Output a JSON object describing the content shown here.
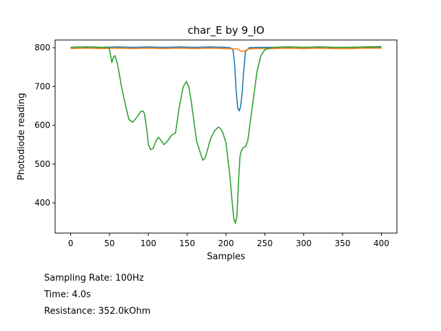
{
  "chart_data": {
    "type": "line",
    "title": "char_E by 9_IO",
    "xlabel": "Samples",
    "ylabel": "Photodiode reading",
    "xlim": [
      -20,
      420
    ],
    "ylim": [
      322,
      820
    ],
    "xticks": [
      0,
      50,
      100,
      150,
      200,
      250,
      300,
      350,
      400
    ],
    "yticks": [
      400,
      500,
      600,
      700,
      800
    ],
    "grid": false,
    "series": [
      {
        "color": "#1f77b4",
        "x": [
          0,
          20,
          40,
          60,
          80,
          100,
          120,
          140,
          160,
          180,
          200,
          205,
          207,
          209,
          211,
          213,
          215,
          217,
          219,
          221,
          223,
          225,
          230,
          240,
          260,
          280,
          300,
          320,
          340,
          360,
          380,
          400
        ],
        "y": [
          801,
          802,
          801,
          802,
          801,
          802,
          801,
          802,
          801,
          802,
          801,
          800,
          798,
          795,
          760,
          690,
          645,
          637,
          650,
          690,
          745,
          790,
          800,
          801,
          801,
          802,
          801,
          802,
          801,
          801,
          802,
          801
        ]
      },
      {
        "color": "#ff7f0e",
        "x": [
          0,
          20,
          40,
          60,
          80,
          100,
          120,
          140,
          160,
          180,
          200,
          210,
          215,
          220,
          225,
          230,
          240,
          260,
          280,
          300,
          320,
          340,
          360,
          380,
          400
        ],
        "y": [
          798,
          799,
          798,
          799,
          798,
          799,
          798,
          799,
          798,
          799,
          798,
          797,
          797,
          790,
          793,
          797,
          798,
          798,
          799,
          798,
          799,
          798,
          798,
          799,
          799
        ]
      },
      {
        "color": "#2ca02c",
        "x": [
          0,
          10,
          20,
          30,
          40,
          48,
          50,
          53,
          55,
          57,
          60,
          62,
          65,
          68,
          72,
          75,
          80,
          85,
          90,
          93,
          95,
          98,
          100,
          103,
          106,
          110,
          113,
          116,
          120,
          125,
          130,
          135,
          140,
          145,
          149,
          152,
          155,
          158,
          162,
          166,
          170,
          173,
          176,
          180,
          185,
          190,
          193,
          196,
          200,
          205,
          208,
          210,
          212,
          214,
          216,
          218,
          220,
          222,
          225,
          228,
          232,
          236,
          240,
          245,
          250,
          260,
          280,
          300,
          320,
          340,
          360,
          380,
          400
        ],
        "y": [
          801,
          802,
          801,
          802,
          801,
          801,
          796,
          762,
          775,
          780,
          760,
          740,
          705,
          675,
          640,
          615,
          608,
          620,
          635,
          637,
          630,
          590,
          550,
          537,
          540,
          560,
          569,
          562,
          550,
          560,
          575,
          580,
          650,
          700,
          713,
          700,
          665,
          620,
          560,
          535,
          510,
          515,
          535,
          565,
          585,
          595,
          592,
          580,
          555,
          470,
          400,
          360,
          347,
          365,
          450,
          520,
          535,
          542,
          545,
          560,
          620,
          680,
          740,
          780,
          795,
          801,
          802,
          801,
          802,
          801,
          801,
          802,
          803
        ]
      }
    ]
  },
  "info": {
    "sampling_rate": "Sampling Rate: 100Hz",
    "time": "Time: 4.0s",
    "resistance": "Resistance: 352.0kOhm"
  }
}
